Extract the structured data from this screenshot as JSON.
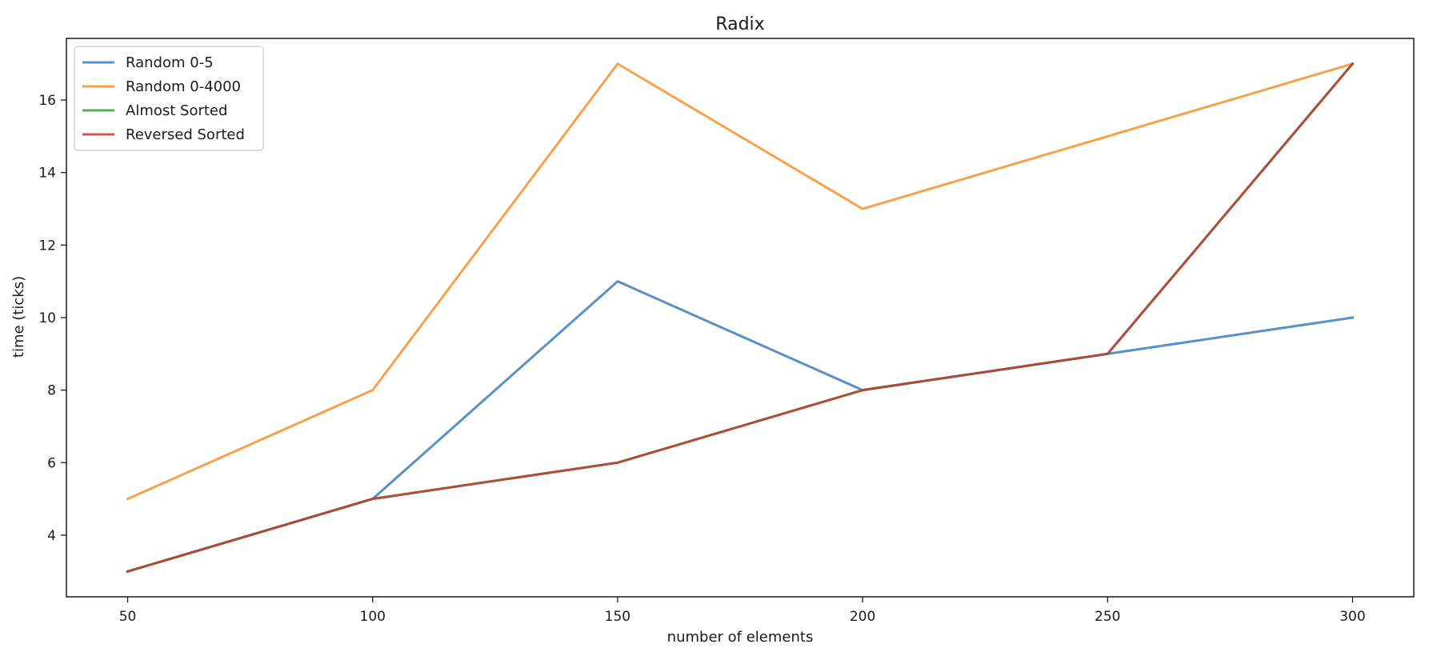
{
  "chart_data": {
    "type": "line",
    "title": "Radix",
    "xlabel": "number of elements",
    "ylabel": "time (ticks)",
    "x": [
      50,
      100,
      150,
      200,
      250,
      300
    ],
    "xlim": [
      37.5,
      312.5
    ],
    "ylim": [
      2.3,
      17.7
    ],
    "xticks": [
      50,
      100,
      150,
      200,
      250,
      300
    ],
    "yticks": [
      4,
      6,
      8,
      10,
      12,
      14,
      16
    ],
    "grid": false,
    "legend_position": "upper-left",
    "series": [
      {
        "name": "Random 0-5",
        "color": "#3b7dbf",
        "values": [
          3,
          5,
          11,
          8,
          9,
          10
        ]
      },
      {
        "name": "Random 0-4000",
        "color": "#f7912b",
        "values": [
          5,
          8,
          17,
          13,
          15,
          17
        ]
      },
      {
        "name": "Almost Sorted",
        "color": "#3a9e3a",
        "values": [
          3,
          5,
          6,
          8,
          9,
          17
        ]
      },
      {
        "name": "Reversed Sorted",
        "color": "#c13b34",
        "values": [
          3,
          5,
          6,
          8,
          9,
          17
        ]
      }
    ]
  }
}
